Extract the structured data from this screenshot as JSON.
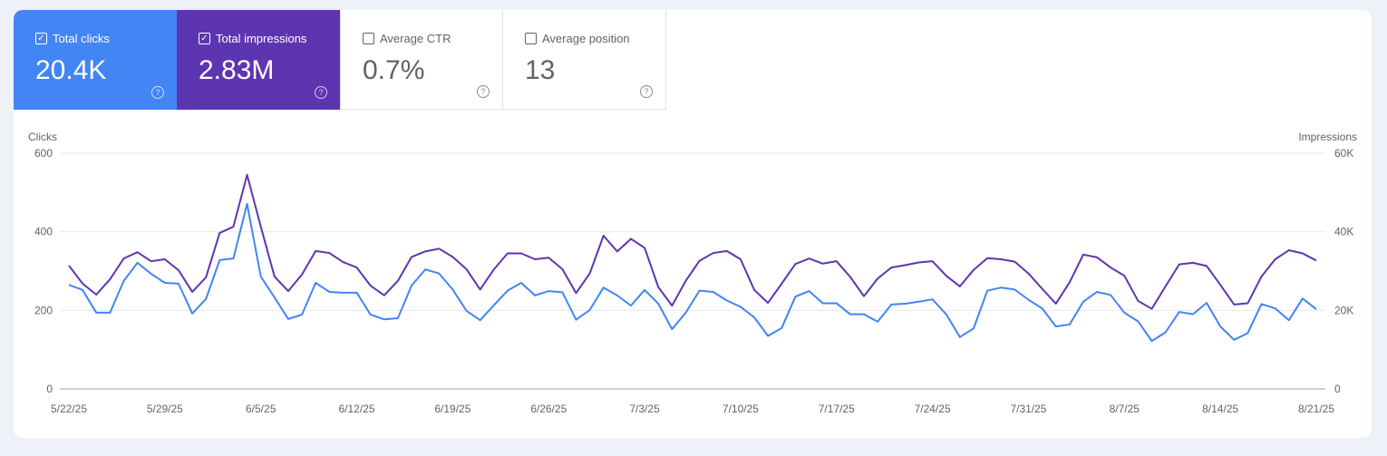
{
  "metrics": [
    {
      "label": "Total clicks",
      "value": "20.4K",
      "checked": true,
      "color": "#4285f4"
    },
    {
      "label": "Total impressions",
      "value": "2.83M",
      "checked": true,
      "color": "#5e35b1"
    },
    {
      "label": "Average CTR",
      "value": "0.7%",
      "checked": false
    },
    {
      "label": "Average position",
      "value": "13",
      "checked": false
    }
  ],
  "chart_data": {
    "type": "line",
    "left_axis_label": "Clicks",
    "right_axis_label": "Impressions",
    "left_ylim": [
      0,
      600
    ],
    "right_ylim": [
      0,
      60000
    ],
    "left_ticks": [
      "0",
      "200",
      "400",
      "600"
    ],
    "right_ticks": [
      "0",
      "20K",
      "40K",
      "60K"
    ],
    "x_range": [
      "5/22/25",
      "8/21/25"
    ],
    "x_ticks": [
      "5/22/25",
      "5/29/25",
      "6/5/25",
      "6/12/25",
      "6/19/25",
      "6/26/25",
      "7/3/25",
      "7/10/25",
      "7/17/25",
      "7/24/25",
      "7/31/25",
      "8/7/25",
      "8/14/25",
      "8/21/25"
    ],
    "grid": true,
    "series": [
      {
        "name": "Clicks",
        "axis": "left",
        "color": "#4285f4",
        "values": [
          265,
          252,
          194,
          194,
          275,
          321,
          293,
          270,
          268,
          192,
          229,
          328,
          332,
          471,
          286,
          233,
          178,
          189,
          270,
          247,
          245,
          245,
          189,
          177,
          180,
          263,
          304,
          294,
          253,
          199,
          175,
          213,
          250,
          270,
          238,
          249,
          246,
          176,
          201,
          258,
          238,
          212,
          252,
          217,
          152,
          194,
          250,
          247,
          225,
          209,
          182,
          135,
          155,
          235,
          249,
          218,
          218,
          190,
          190,
          171,
          215,
          217,
          222,
          228,
          190,
          132,
          154,
          250,
          258,
          253,
          227,
          205,
          159,
          164,
          222,
          247,
          239,
          194,
          172,
          122,
          144,
          196,
          190,
          219,
          159,
          125,
          142,
          216,
          205,
          175,
          230,
          203
        ]
      },
      {
        "name": "Impressions",
        "axis": "right",
        "color": "#5e35b1",
        "values": [
          31400,
          26800,
          24000,
          27900,
          33200,
          34800,
          32500,
          33000,
          30200,
          24700,
          28400,
          39700,
          41300,
          54500,
          41300,
          28600,
          24900,
          29100,
          35100,
          34600,
          32300,
          30900,
          26300,
          23800,
          27500,
          33600,
          35000,
          35700,
          33600,
          30500,
          25300,
          30400,
          34500,
          34500,
          33000,
          33400,
          30500,
          24400,
          29400,
          39000,
          35000,
          38200,
          35900,
          25900,
          21200,
          27500,
          32600,
          34600,
          35100,
          33000,
          25200,
          21900,
          26800,
          31800,
          33200,
          31900,
          32500,
          28500,
          23600,
          28100,
          30900,
          31500,
          32200,
          32500,
          28800,
          26100,
          30300,
          33300,
          33000,
          32400,
          29400,
          25500,
          21700,
          27100,
          34200,
          33500,
          30900,
          28800,
          22400,
          20400,
          26100,
          31700,
          32100,
          31300,
          26500,
          21500,
          21800,
          28600,
          33000,
          35300,
          34500,
          32700
        ]
      }
    ]
  }
}
